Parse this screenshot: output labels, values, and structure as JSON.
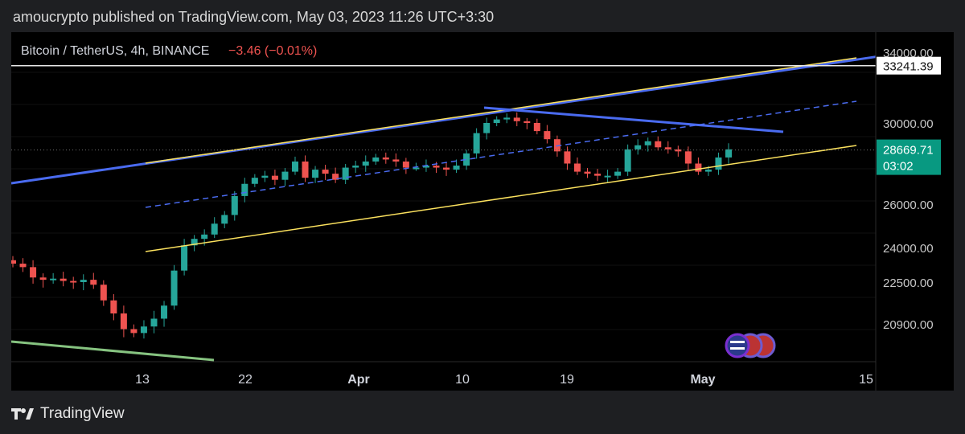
{
  "header": {
    "publisher_line": "amoucrypto published on TradingView.com, May 03, 2023 11:26 UTC+3:30"
  },
  "legend": {
    "symbol": "Bitcoin / TetherUS, 4h, BINANCE",
    "change": "−3.46 (−0.01%)"
  },
  "footer": {
    "brand": "TradingView"
  },
  "colors": {
    "up": "#26a69a",
    "down": "#ef5350",
    "channel": "#fbe15e",
    "trendline": "#4a6bf0",
    "support_old": "#86c380",
    "last_price_bg": "#089981",
    "hline": "#e8e8e8",
    "background": "#000000"
  },
  "chart_data": {
    "type": "candlestick",
    "symbol": "BTC/USDT",
    "timeframe": "4h",
    "exchange": "BINANCE",
    "y_ticks": [
      "34000.00",
      "30000.00",
      "26000.00",
      "24000.00",
      "22500.00",
      "20900.00"
    ],
    "y_tick_values": [
      34000,
      30000,
      26000,
      24000,
      22500,
      20900
    ],
    "x_ticks": [
      "13",
      "22",
      "Apr",
      "10",
      "19",
      "May",
      "15"
    ],
    "horizontal_line": {
      "value": 33241.39,
      "label": "33241.39"
    },
    "last_price": {
      "value": 28669.71,
      "label": "28669.71",
      "countdown": "03:02"
    },
    "candles_close": [
      23300,
      23150,
      22700,
      22600,
      22650,
      22550,
      22500,
      22600,
      22400,
      21800,
      21300,
      20700,
      20550,
      20800,
      21100,
      21600,
      23000,
      24100,
      24400,
      24600,
      25100,
      25500,
      26400,
      27000,
      27300,
      27400,
      27200,
      27600,
      28100,
      27300,
      27700,
      27500,
      27200,
      27800,
      27900,
      28100,
      28300,
      28200,
      28100,
      27800,
      27800,
      27900,
      27800,
      27700,
      27900,
      28500,
      29500,
      30000,
      30200,
      30300,
      30100,
      30000,
      29600,
      29200,
      28600,
      28000,
      27600,
      27500,
      27400,
      27400,
      27600,
      28700,
      28900,
      29100,
      28800,
      28700,
      28600,
      28000,
      27600,
      27700,
      28300,
      28700
    ]
  }
}
